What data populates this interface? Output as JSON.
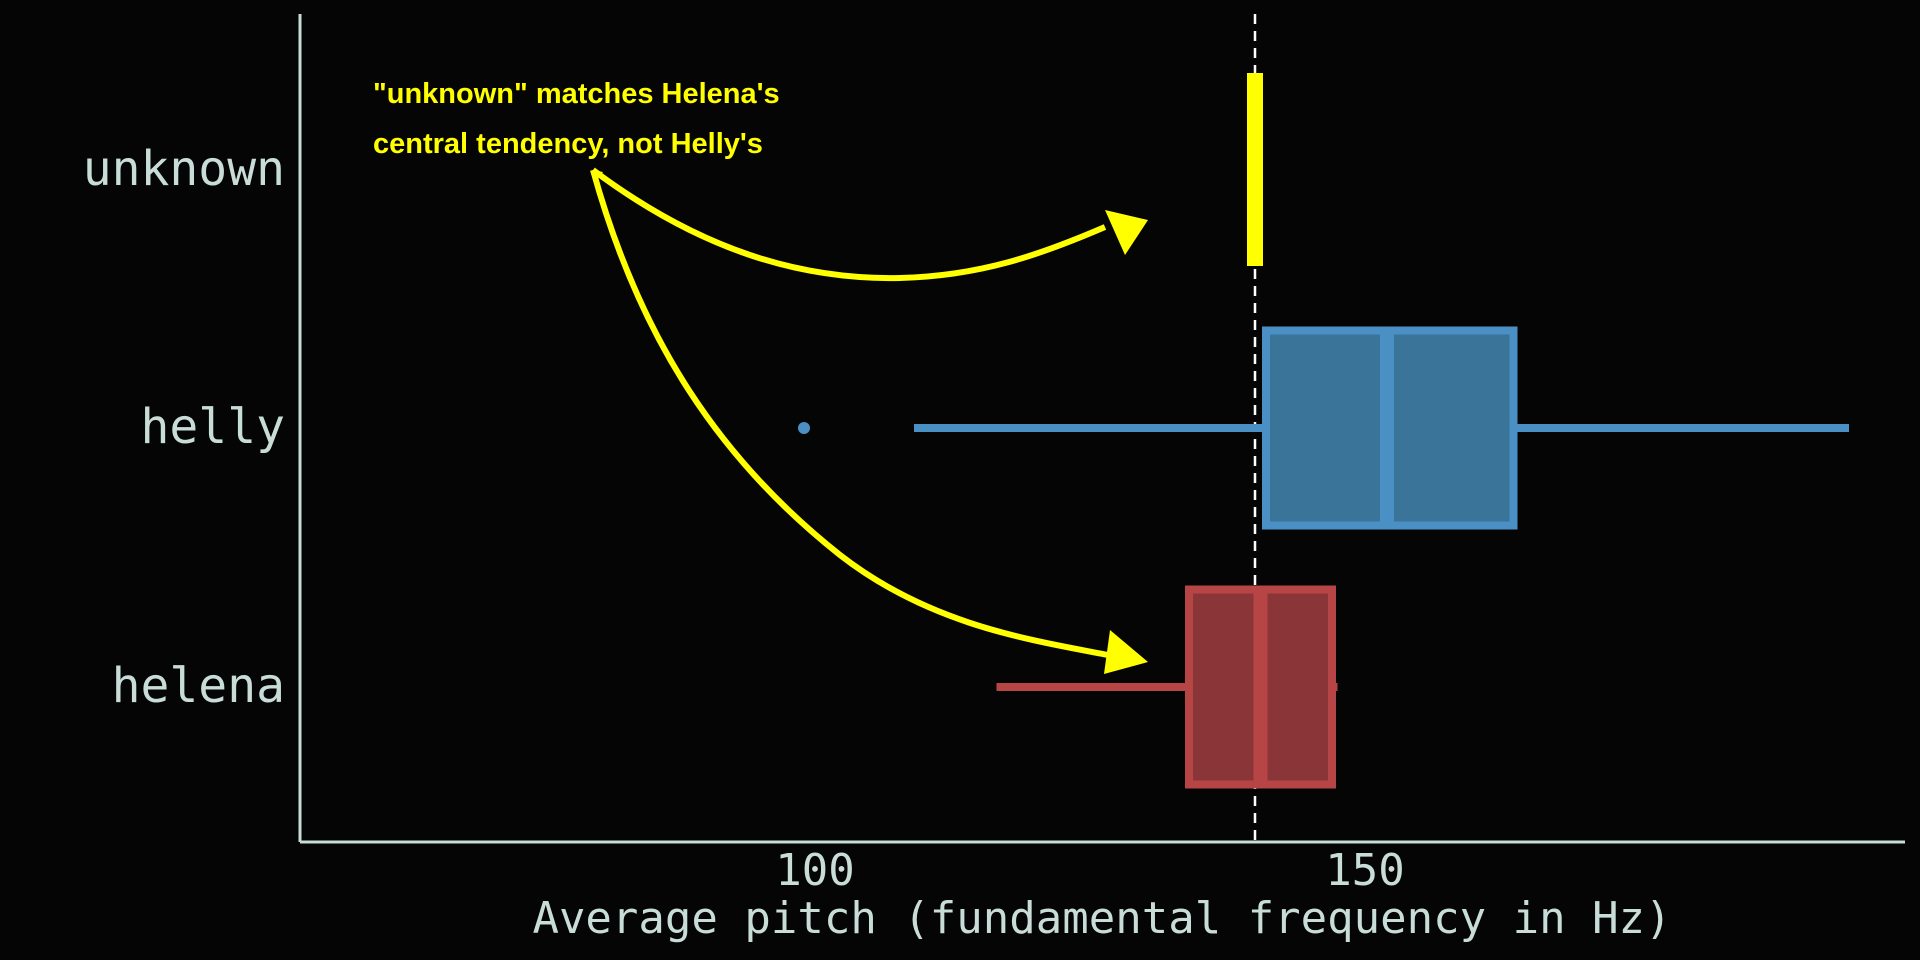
{
  "chart_data": {
    "type": "boxplot",
    "orientation": "horizontal",
    "title": "",
    "xlabel": "Average pitch (fundamental frequency in Hz)",
    "ylabel": "",
    "xlim": [
      55,
      200
    ],
    "x_ticks": [
      100,
      150
    ],
    "x_tick_labels": [
      "100",
      "150"
    ],
    "grid": false,
    "categories": [
      "unknown",
      "helly",
      "helena"
    ],
    "reference_line": {
      "x": 140,
      "style": "dashed",
      "color": "#ffffff"
    },
    "series": [
      {
        "name": "unknown",
        "color": "#ffff00",
        "value": 140
      },
      {
        "name": "helly",
        "color": "#4a90c4",
        "fill": "#3a7499",
        "whisker_low": 109,
        "q1": 141,
        "median": 152,
        "q3": 163.5,
        "whisker_high": 194,
        "outliers": [
          99
        ]
      },
      {
        "name": "helena",
        "color": "#b84545",
        "fill": "#8a3538",
        "whisker_low": 116.5,
        "q1": 134,
        "median": 140.5,
        "q3": 147,
        "whisker_high": 147.5,
        "outliers": []
      }
    ],
    "annotation": {
      "lines": [
        "\"unknown\" matches Helena's",
        "central tendency, not Helly's"
      ],
      "color": "#ffff00"
    }
  }
}
